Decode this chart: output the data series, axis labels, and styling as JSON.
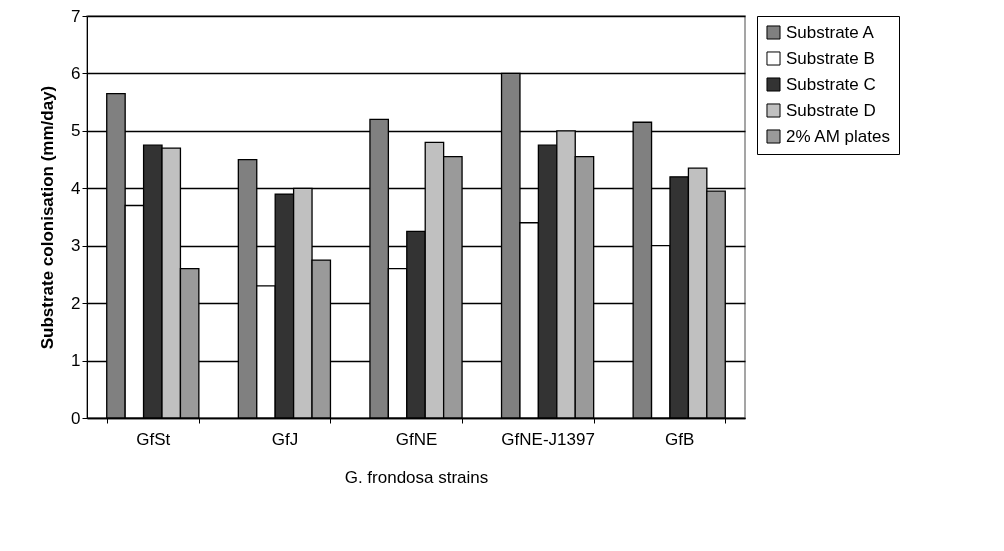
{
  "chart_data": {
    "type": "bar",
    "xlabel": "G. frondosa strains",
    "ylabel": "Substrate colonisation (mm/day)",
    "categories": [
      "GfSt",
      "GfJ",
      "GfNE",
      "GfNE-J1397",
      "GfB"
    ],
    "series": [
      {
        "name": "Substrate A",
        "color": "#808080",
        "values": [
          5.65,
          4.5,
          5.2,
          6.0,
          5.15
        ]
      },
      {
        "name": "Substrate B",
        "color": "#ffffff",
        "values": [
          3.7,
          2.3,
          2.6,
          3.4,
          3.0
        ]
      },
      {
        "name": "Substrate C",
        "color": "#333333",
        "values": [
          4.75,
          3.9,
          3.25,
          4.75,
          4.2
        ]
      },
      {
        "name": "Substrate D",
        "color": "#c0c0c0",
        "values": [
          4.7,
          4.0,
          4.8,
          5.0,
          4.35
        ]
      },
      {
        "name": "2% AM plates",
        "color": "#9a9a9a",
        "values": [
          2.6,
          2.75,
          4.55,
          4.55,
          3.95
        ]
      }
    ],
    "ylim": [
      0,
      7
    ],
    "yticks": [
      0,
      1,
      2,
      3,
      4,
      5,
      6,
      7
    ],
    "grid": "y",
    "legend": "right"
  }
}
